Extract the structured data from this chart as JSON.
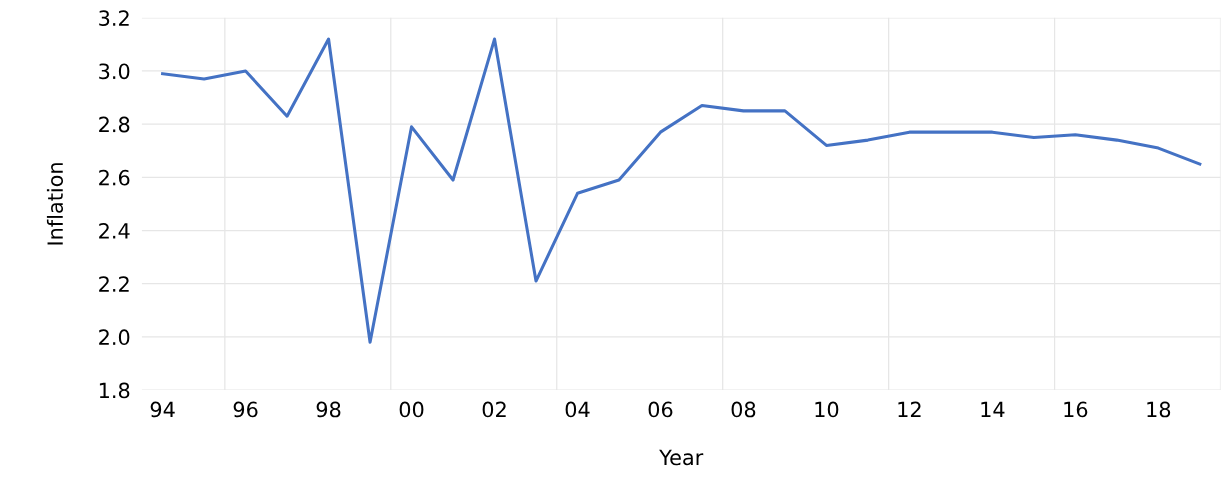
{
  "chart_data": {
    "type": "line",
    "xlabel": "Year",
    "ylabel": "Inflation",
    "x": [
      1994,
      1995,
      1996,
      1997,
      1998,
      1999,
      2000,
      2001,
      2002,
      2003,
      2004,
      2005,
      2006,
      2007,
      2008,
      2009,
      2010,
      2011,
      2012,
      2013,
      2014,
      2015,
      2016,
      2017,
      2018,
      2019
    ],
    "series": [
      {
        "color": "#4472c4",
        "values": [
          2.99,
          2.97,
          3.0,
          2.83,
          3.12,
          1.98,
          2.79,
          2.59,
          3.12,
          2.21,
          2.54,
          2.59,
          2.77,
          2.87,
          2.85,
          2.85,
          2.72,
          2.74,
          2.77,
          2.77,
          2.77,
          2.75,
          2.76,
          2.74,
          2.71,
          2.65
        ]
      }
    ],
    "xlim": [
      1993.5,
      2019.5
    ],
    "xticks": [
      {
        "value": 1994,
        "label": "94"
      },
      {
        "value": 1996,
        "label": "96"
      },
      {
        "value": 1998,
        "label": "98"
      },
      {
        "value": 2000,
        "label": "00"
      },
      {
        "value": 2002,
        "label": "02"
      },
      {
        "value": 2004,
        "label": "04"
      },
      {
        "value": 2006,
        "label": "06"
      },
      {
        "value": 2008,
        "label": "08"
      },
      {
        "value": 2010,
        "label": "10"
      },
      {
        "value": 2012,
        "label": "12"
      },
      {
        "value": 2014,
        "label": "14"
      },
      {
        "value": 2016,
        "label": "16"
      },
      {
        "value": 2018,
        "label": "18"
      },
      {
        "value": 1995.5,
        "label": null
      },
      {
        "value": 1999.5,
        "label": null
      },
      {
        "value": 2003.5,
        "label": null
      },
      {
        "value": 2007.5,
        "label": null
      },
      {
        "value": 2011.5,
        "label": null
      },
      {
        "value": 2015.5,
        "label": null
      },
      {
        "value": 2019.5,
        "label": null
      }
    ],
    "ylim": [
      1.8,
      3.2
    ],
    "yticks": [
      {
        "value": 1.8,
        "label": "1.8"
      },
      {
        "value": 2.0,
        "label": "2.0"
      },
      {
        "value": 2.2,
        "label": "2.2"
      },
      {
        "value": 2.4,
        "label": "2.4"
      },
      {
        "value": 2.6,
        "label": "2.6"
      },
      {
        "value": 2.8,
        "label": "2.8"
      },
      {
        "value": 3.0,
        "label": "3.0"
      },
      {
        "value": 3.2,
        "label": "3.2"
      }
    ],
    "grid": true,
    "marker": "none",
    "line_style": "solid"
  }
}
